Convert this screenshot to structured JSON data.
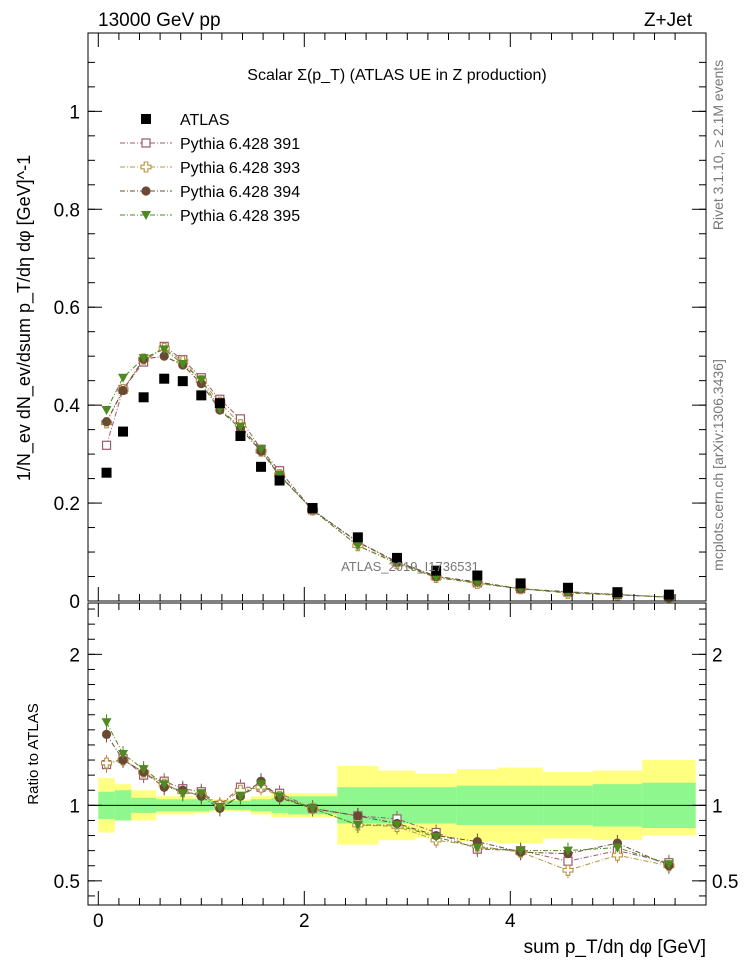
{
  "header": {
    "left": "13000 GeV pp",
    "right": "Z+Jet"
  },
  "side_labels": {
    "rivet": "Rivet 3.1.10, ≥ 2.1M events",
    "mcplots": "mcplots.cern.ch [arXiv:1306.3436]"
  },
  "watermark": "ATLAS_2019_I1736531",
  "chart_data": [
    {
      "type": "scatter",
      "title": "Scalar Σ(p_T) (ATLAS UE in Z production)",
      "ylabel": "1/N_ev dN_ev/dsum p_T/dη dφ [GeV]^-1",
      "xlabel": "sum p_T/dη dφ [GeV]",
      "xlim": [
        -0.1,
        5.9
      ],
      "ylim": [
        0,
        1.16
      ],
      "yticks": [
        "0",
        "0.2",
        "0.4",
        "0.6",
        "0.8",
        "1"
      ],
      "log_scale": false,
      "grid": false,
      "legend_position": "top-left",
      "x": [
        0.08,
        0.24,
        0.44,
        0.64,
        0.82,
        1.0,
        1.18,
        1.38,
        1.58,
        1.76,
        2.08,
        2.52,
        2.9,
        3.28,
        3.68,
        4.1,
        4.56,
        5.04,
        5.54
      ],
      "series": [
        {
          "name": "ATLAS",
          "color": "#000000",
          "marker": "square",
          "values": [
            0.262,
            0.346,
            0.416,
            0.454,
            0.449,
            0.42,
            0.404,
            0.337,
            0.274,
            0.246,
            0.19,
            0.13,
            0.088,
            0.062,
            0.052,
            0.036,
            0.027,
            0.018,
            0.013
          ]
        },
        {
          "name": "Pythia 6.428 391",
          "color": "#9b5a6e",
          "marker": "open-square",
          "values": [
            0.318,
            0.432,
            0.488,
            0.52,
            0.493,
            0.456,
            0.412,
            0.372,
            0.31,
            0.266,
            0.186,
            0.121,
            0.08,
            0.051,
            0.037,
            0.025,
            0.018,
            0.013,
            0.008
          ]
        },
        {
          "name": "Pythia 6.428 393",
          "color": "#b89440",
          "marker": "open-cross",
          "values": [
            0.364,
            0.432,
            0.494,
            0.516,
            0.49,
            0.45,
            0.406,
            0.36,
            0.306,
            0.258,
            0.186,
            0.113,
            0.076,
            0.048,
            0.036,
            0.025,
            0.016,
            0.012,
            0.008
          ]
        },
        {
          "name": "Pythia 6.428 394",
          "color": "#6b4a35",
          "marker": "circle",
          "values": [
            0.366,
            0.43,
            0.494,
            0.5,
            0.482,
            0.444,
            0.39,
            0.352,
            0.306,
            0.256,
            0.186,
            0.12,
            0.079,
            0.05,
            0.039,
            0.025,
            0.019,
            0.013,
            0.008
          ]
        },
        {
          "name": "Pythia 6.428 395",
          "color": "#4d8a1f",
          "marker": "triangle-down",
          "values": [
            0.39,
            0.456,
            0.496,
            0.514,
            0.484,
            0.452,
            0.392,
            0.356,
            0.31,
            0.258,
            0.186,
            0.113,
            0.078,
            0.048,
            0.037,
            0.025,
            0.017,
            0.013,
            0.008
          ]
        }
      ]
    },
    {
      "type": "scatter",
      "ylabel": "Ratio to ATLAS",
      "xlabel": "sum p_T/dη dφ [GeV]",
      "xlim": [
        -0.1,
        5.9
      ],
      "ylim": [
        0.34,
        2.34
      ],
      "yticks": [
        "0.5",
        "1",
        "2"
      ],
      "xticks": [
        "0",
        "2",
        "4"
      ],
      "grid": false,
      "bands": {
        "bin_edges": [
          0,
          0.16,
          0.32,
          0.56,
          0.72,
          0.92,
          1.08,
          1.28,
          1.48,
          1.68,
          1.84,
          2.32,
          2.72,
          3.08,
          3.48,
          3.88,
          4.32,
          4.8,
          5.28,
          5.8
        ],
        "stat_low": [
          0.91,
          0.9,
          0.95,
          0.96,
          0.96,
          0.96,
          0.97,
          0.97,
          0.96,
          0.95,
          0.94,
          0.88,
          0.88,
          0.88,
          0.87,
          0.87,
          0.87,
          0.86,
          0.85
        ],
        "stat_high": [
          1.09,
          1.1,
          1.05,
          1.04,
          1.04,
          1.04,
          1.03,
          1.03,
          1.04,
          1.05,
          1.06,
          1.12,
          1.12,
          1.12,
          1.13,
          1.13,
          1.13,
          1.14,
          1.15
        ],
        "syst_low": [
          0.82,
          0.9,
          0.9,
          0.94,
          0.94,
          0.95,
          0.96,
          0.96,
          0.94,
          0.92,
          0.92,
          0.74,
          0.77,
          0.79,
          0.76,
          0.75,
          0.78,
          0.77,
          0.8
        ],
        "syst_high": [
          1.18,
          1.14,
          1.1,
          1.06,
          1.06,
          1.05,
          1.04,
          1.04,
          1.06,
          1.08,
          1.08,
          1.26,
          1.23,
          1.21,
          1.24,
          1.25,
          1.22,
          1.23,
          1.3
        ]
      },
      "series": [
        {
          "name": "Pythia 6.428 391",
          "values": [
            1.27,
            1.31,
            1.2,
            1.16,
            1.11,
            1.09,
            1.0,
            1.12,
            1.12,
            1.08,
            0.98,
            0.93,
            0.91,
            0.82,
            0.71,
            0.7,
            0.63,
            0.7,
            0.62
          ]
        },
        {
          "name": "Pythia 6.428 393",
          "values": [
            1.28,
            1.3,
            1.22,
            1.14,
            1.09,
            1.07,
            1.0,
            1.1,
            1.12,
            1.06,
            0.98,
            0.87,
            0.86,
            0.77,
            0.73,
            0.69,
            0.57,
            0.67,
            0.6
          ]
        },
        {
          "name": "Pythia 6.428 394",
          "values": [
            1.47,
            1.3,
            1.22,
            1.12,
            1.1,
            1.06,
            0.98,
            1.06,
            1.16,
            1.05,
            0.98,
            0.93,
            0.88,
            0.8,
            0.76,
            0.69,
            0.68,
            0.75,
            0.6
          ]
        },
        {
          "name": "Pythia 6.428 395",
          "values": [
            1.55,
            1.34,
            1.24,
            1.14,
            1.08,
            1.08,
            0.99,
            1.06,
            1.14,
            1.06,
            0.98,
            0.87,
            0.87,
            0.79,
            0.72,
            0.7,
            0.7,
            0.72,
            0.61
          ]
        }
      ]
    }
  ]
}
